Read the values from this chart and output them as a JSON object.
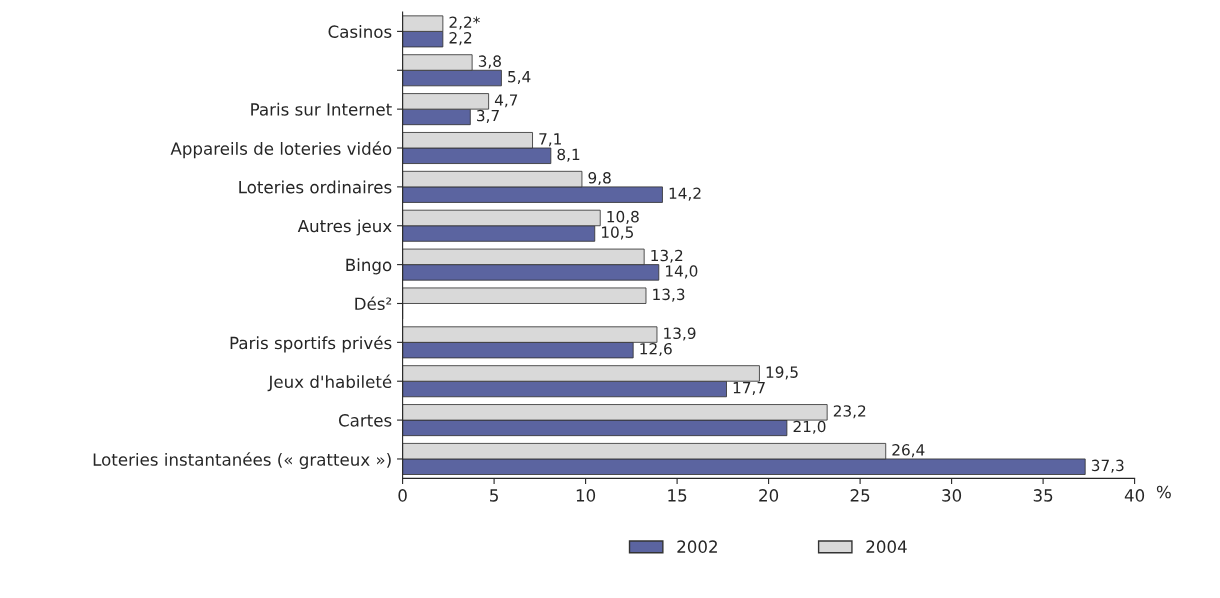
{
  "chart_data": {
    "type": "bar",
    "orientation": "horizontal",
    "xlabel": "%",
    "categories": [
      "Casinos",
      null,
      "Paris sur Internet",
      "Appareils de loteries vidéo",
      "Loteries ordinaires",
      "Autres jeux",
      "Bingo",
      "Dés²",
      "Paris sportifs privés",
      "Jeux d'habileté",
      "Cartes",
      "Loteries instantanées (« gratteux »)"
    ],
    "series": [
      {
        "name": "2002",
        "color": "#5b64a0",
        "values": [
          2.2,
          5.4,
          3.7,
          8.1,
          14.2,
          10.5,
          14.0,
          null,
          12.6,
          17.7,
          21.0,
          37.3
        ],
        "value_labels": [
          "2,2",
          "5,4",
          "3,7",
          "8,1",
          "14,2",
          "10,5",
          "14,0",
          null,
          "12,6",
          "17,7",
          "21,0",
          "37,3"
        ]
      },
      {
        "name": "2004",
        "color": "#d9d9d9",
        "values": [
          2.2,
          3.8,
          4.7,
          7.1,
          9.8,
          10.8,
          13.2,
          13.3,
          13.9,
          19.5,
          23.2,
          26.4
        ],
        "value_labels": [
          "2,2*",
          "3,8",
          "4,7",
          "7,1",
          "9,8",
          "10,8",
          "13,2",
          "13,3",
          "13,9",
          "19,5",
          "23,2",
          "26,4"
        ]
      }
    ],
    "xlim": [
      0,
      40
    ],
    "xticks": [
      0,
      5,
      10,
      15,
      20,
      25,
      30,
      35,
      40
    ],
    "grid": false,
    "legend": "bottom"
  }
}
